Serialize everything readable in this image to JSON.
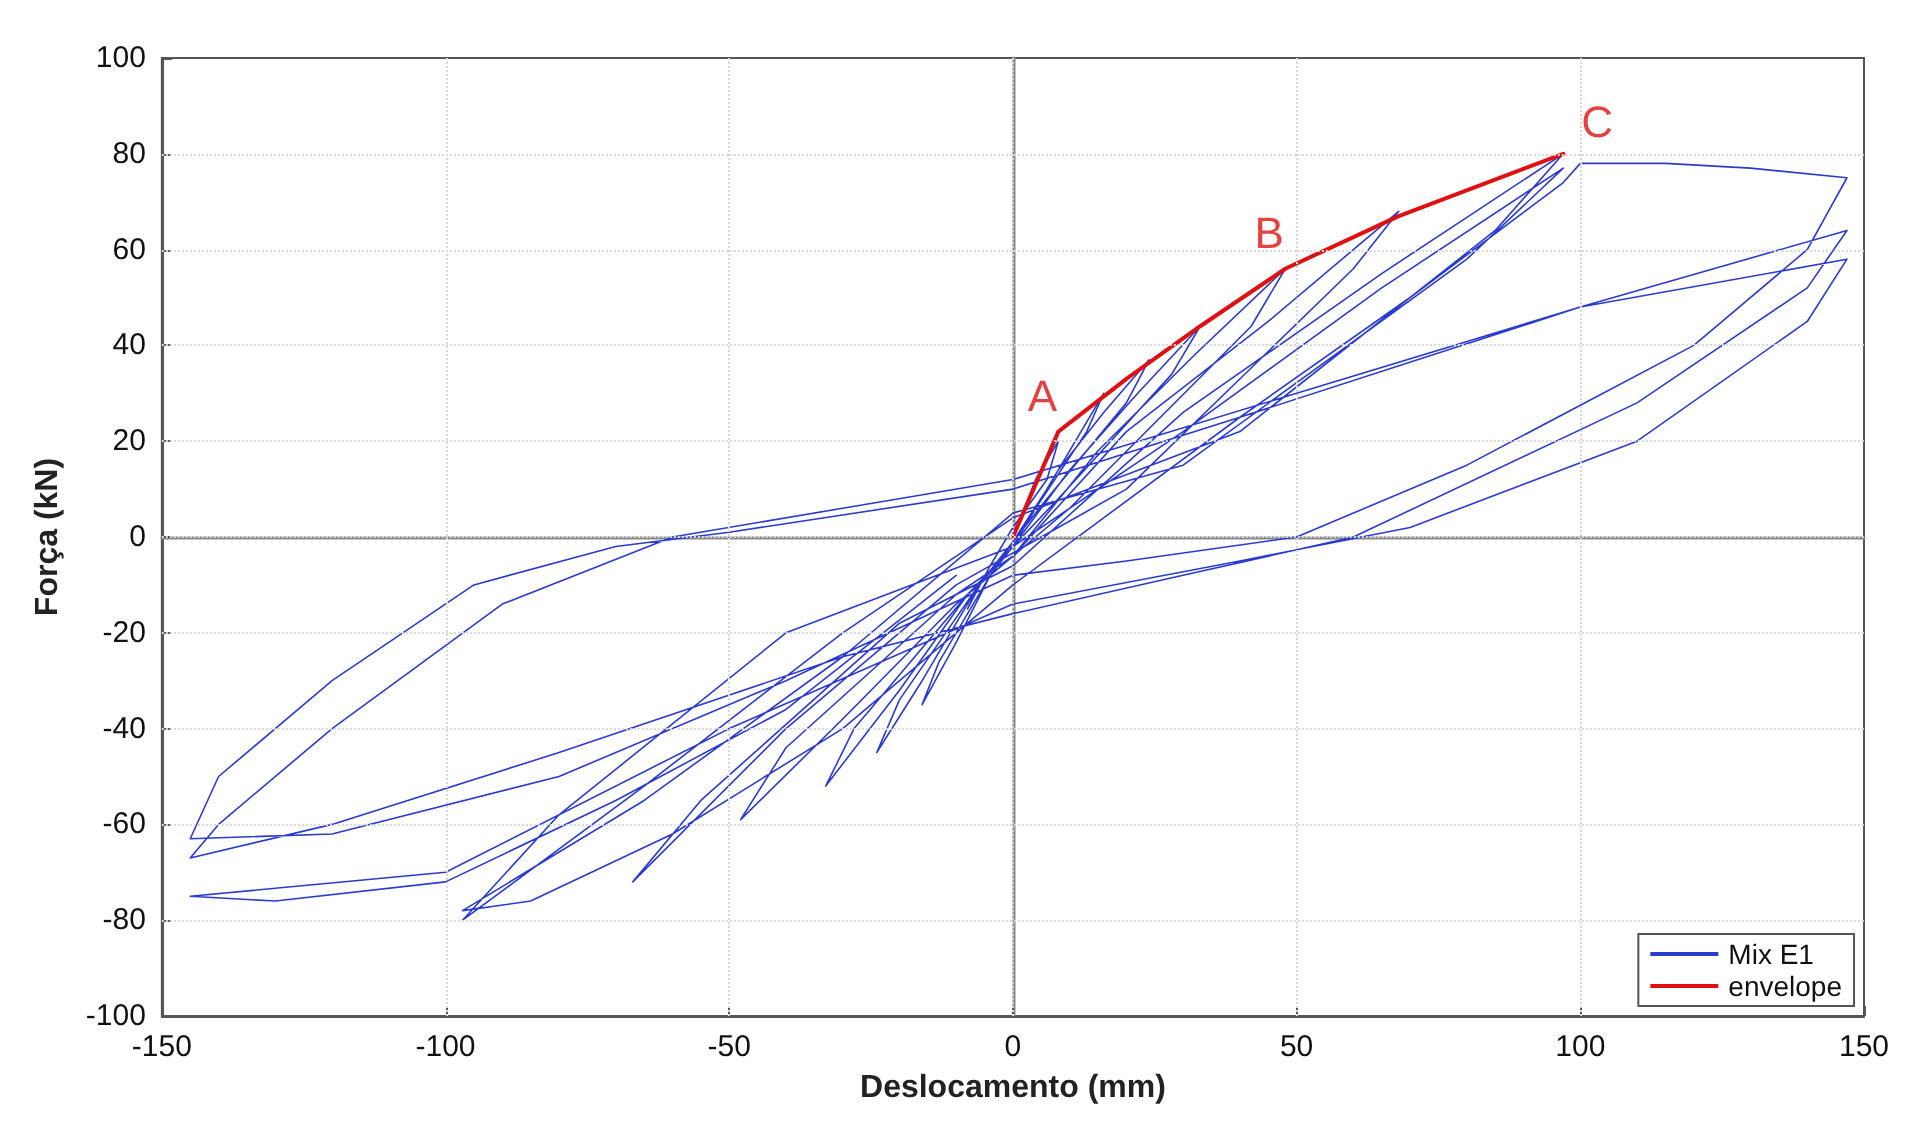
{
  "chart_data": {
    "type": "line",
    "xlabel": "Deslocamento (mm)",
    "ylabel": "Força (kN)",
    "xlim": [
      -150,
      150
    ],
    "xticks": [
      -150,
      -100,
      -50,
      0,
      50,
      100,
      150
    ],
    "ylim": [
      -100,
      100
    ],
    "yticks": [
      -100,
      -80,
      -60,
      -40,
      -20,
      0,
      20,
      40,
      60,
      80,
      100
    ],
    "grid": true,
    "legend": "bottom right",
    "marker": "none",
    "line_style": "solid",
    "annotations": [
      {
        "text": "A",
        "x": 8,
        "y": 22
      },
      {
        "text": "B",
        "x": 48,
        "y": 56
      },
      {
        "text": "C",
        "x": 97,
        "y": 80
      }
    ],
    "series": [
      {
        "name": "Mix E1",
        "color": "#2b3bd0",
        "x": [
          0,
          4,
          8,
          6,
          0,
          -4,
          -8,
          -6,
          0,
          6,
          12,
          16,
          13,
          4,
          -4,
          -10,
          -16,
          -13,
          -4,
          0,
          8,
          16,
          24,
          20,
          6,
          -6,
          -16,
          -24,
          -20,
          -6,
          0,
          10,
          22,
          33,
          28,
          8,
          -8,
          -20,
          -33,
          -28,
          -8,
          0,
          15,
          32,
          48,
          42,
          10,
          -10,
          -30,
          -48,
          -40,
          -10,
          0,
          20,
          45,
          68,
          60,
          20,
          -10,
          -40,
          -67,
          -55,
          -20,
          0,
          30,
          65,
          97,
          85,
          40,
          0,
          -30,
          -65,
          -97,
          -80,
          -40,
          0,
          30,
          65,
          97,
          80,
          30,
          0,
          -30,
          -65,
          -97,
          -85,
          -60,
          -30,
          0,
          40,
          70,
          97,
          100,
          115,
          130,
          147,
          140,
          120,
          80,
          50,
          20,
          0,
          -40,
          -80,
          -120,
          -145,
          -140,
          -120,
          -95,
          -70,
          -50,
          0,
          40,
          100,
          147,
          140,
          110,
          60,
          30,
          0,
          -30,
          -80,
          -120,
          -145,
          -140,
          -120,
          -90,
          -60,
          -30,
          0,
          50,
          100,
          147,
          140,
          110,
          70,
          40,
          0,
          -50,
          -100,
          -145,
          -130,
          -100,
          -70,
          -40,
          -10
        ],
        "values": [
          0,
          12,
          20,
          12,
          2,
          -6,
          -15,
          -10,
          -1,
          10,
          22,
          30,
          22,
          6,
          -8,
          -22,
          -35,
          -26,
          -8,
          -2,
          14,
          26,
          37,
          28,
          8,
          -10,
          -30,
          -45,
          -34,
          -10,
          -2,
          14,
          30,
          44,
          34,
          8,
          -12,
          -32,
          -52,
          -40,
          -12,
          -4,
          18,
          38,
          56,
          44,
          6,
          -14,
          -38,
          -59,
          -44,
          -12,
          -4,
          22,
          45,
          68,
          56,
          10,
          -10,
          -40,
          -72,
          -55,
          -18,
          -6,
          26,
          55,
          80,
          64,
          22,
          4,
          -20,
          -52,
          -80,
          -58,
          -20,
          -2,
          22,
          52,
          77,
          58,
          15,
          5,
          -25,
          -55,
          -78,
          -76,
          -62,
          -40,
          -10,
          25,
          50,
          74,
          78,
          78,
          77,
          75,
          60,
          40,
          15,
          0,
          -5,
          -8,
          -30,
          -50,
          -62,
          -63,
          -50,
          -30,
          -10,
          -2,
          1,
          10,
          25,
          48,
          64,
          52,
          28,
          0,
          -8,
          -16,
          -25,
          -45,
          -60,
          -67,
          -60,
          -40,
          -14,
          0,
          6,
          12,
          30,
          48,
          58,
          45,
          20,
          2,
          -5,
          -14,
          -40,
          -70,
          -75,
          -76,
          -72,
          -55,
          -36,
          -8
        ]
      },
      {
        "name": "envelope",
        "color": "#e01010",
        "x": [
          0,
          8,
          20,
          33,
          48,
          68,
          97
        ],
        "values": [
          0,
          22,
          33,
          44,
          56,
          67,
          80
        ]
      }
    ]
  }
}
